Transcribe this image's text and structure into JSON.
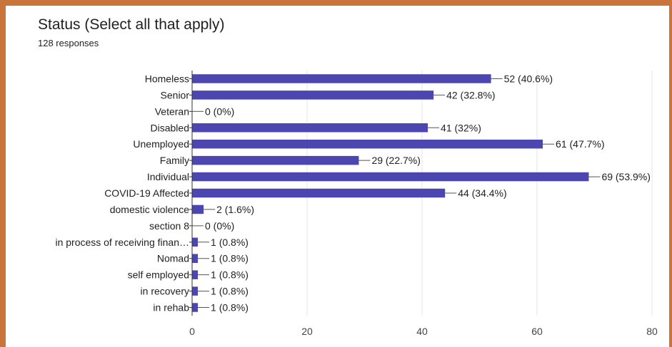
{
  "card": {
    "title": "Status (Select all that apply)",
    "subtitle": "128 responses"
  },
  "colors": {
    "bar": "#4c46b0",
    "grid": "#e6e6e6",
    "axis": "#333333",
    "frame": "#c8743a"
  },
  "chart_data": {
    "type": "bar",
    "orientation": "horizontal",
    "title": "Status (Select all that apply)",
    "categories": [
      "Homeless",
      "Senior",
      "Veteran",
      "Disabled",
      "Unemployed",
      "Family",
      "Individual",
      "COVID-19 Affected",
      "domestic violence",
      "section 8",
      "in process of receiving finan…",
      "Nomad",
      "self employed",
      "in recovery",
      "in rehab"
    ],
    "values": [
      52,
      42,
      0,
      41,
      61,
      29,
      69,
      44,
      2,
      0,
      1,
      1,
      1,
      1,
      1
    ],
    "data_labels": [
      "52 (40.6%)",
      "42 (32.8%)",
      "0 (0%)",
      "41 (32%)",
      "61 (47.7%)",
      "29 (22.7%)",
      "69 (53.9%)",
      "44 (34.4%)",
      "2 (1.6%)",
      "0 (0%)",
      "1 (0.8%)",
      "1 (0.8%)",
      "1 (0.8%)",
      "1 (0.8%)",
      "1 (0.8%)"
    ],
    "xlim": [
      0,
      80
    ],
    "xticks": [
      "0",
      "20",
      "40",
      "60",
      "80"
    ],
    "xtick_values": [
      0,
      20,
      40,
      60,
      80
    ],
    "grid": true,
    "legend": "none"
  }
}
